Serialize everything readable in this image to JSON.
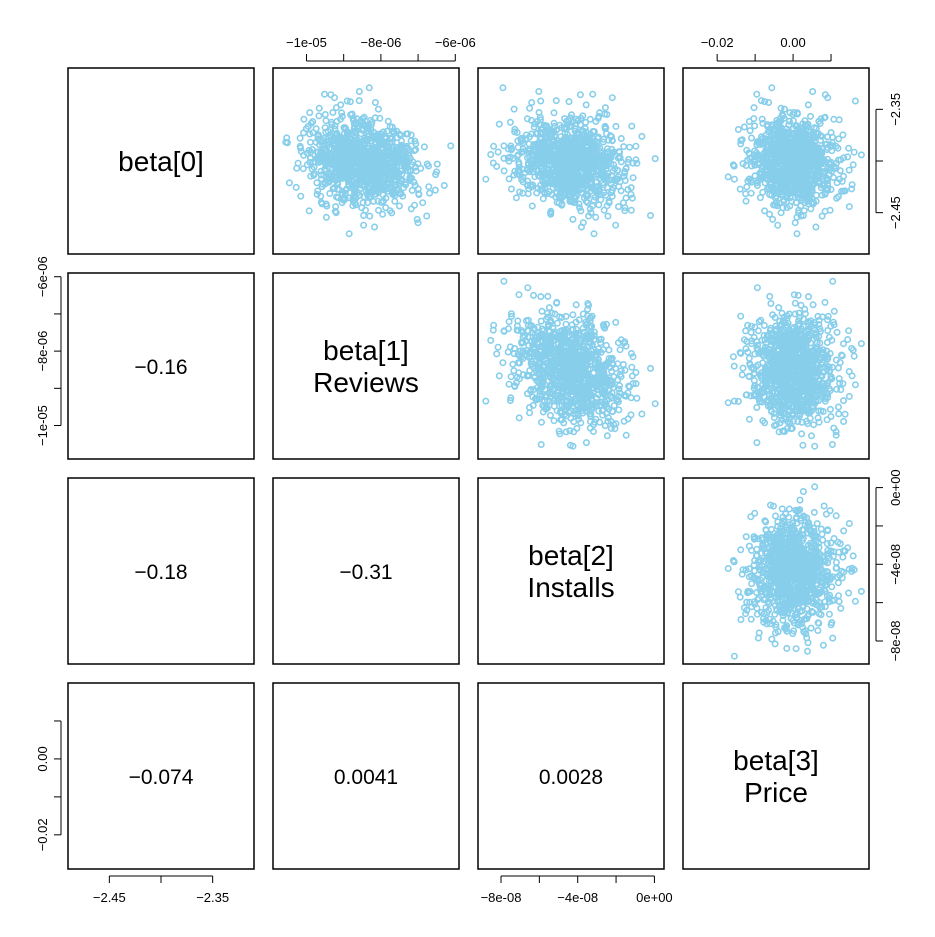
{
  "chart_data": {
    "type": "scatter",
    "point_color": "#87CEEB",
    "variables": [
      {
        "id": "beta0",
        "label_lines": [
          "beta[0]"
        ],
        "range": [
          -2.49,
          -2.31
        ],
        "ticks": [
          "-2.45",
          "-2.35"
        ]
      },
      {
        "id": "beta1",
        "label_lines": [
          "beta[1]",
          "Reviews"
        ],
        "range": [
          -1.09e-05,
          -5.9e-06
        ],
        "ticks": [
          "-1e-05",
          "-8e-06",
          "-6e-06"
        ]
      },
      {
        "id": "beta2",
        "label_lines": [
          "beta[2]",
          "Installs"
        ],
        "range": [
          -9.2e-08,
          5e-09
        ],
        "ticks": [
          "-8e-08",
          "-4e-08",
          "0e+00"
        ]
      },
      {
        "id": "beta3",
        "label_lines": [
          "beta[3]",
          "Price"
        ],
        "range": [
          -0.029,
          0.02
        ],
        "ticks": [
          "-0.02",
          "0.00"
        ]
      }
    ],
    "correlations": [
      {
        "row": 1,
        "col": 0,
        "text": "−0.16"
      },
      {
        "row": 2,
        "col": 0,
        "text": "−0.18"
      },
      {
        "row": 2,
        "col": 1,
        "text": "−0.31"
      },
      {
        "row": 3,
        "col": 0,
        "text": "−0.074"
      },
      {
        "row": 3,
        "col": 1,
        "text": "0.0041"
      },
      {
        "row": 3,
        "col": 2,
        "text": "0.0028"
      }
    ],
    "samples": {
      "n": 1000,
      "means": [
        -2.4,
        -8.5e-06,
        -4.4e-08,
        0.0
      ],
      "sds": [
        0.022,
        7.5e-07,
        1.45e-08,
        0.0058
      ],
      "corr": [
        [
          1,
          -0.16,
          -0.18,
          -0.074
        ],
        [
          -0.16,
          1,
          -0.31,
          0.0041
        ],
        [
          -0.18,
          -0.31,
          1,
          0.0028
        ],
        [
          -0.074,
          0.0041,
          0.0028,
          1
        ]
      ]
    }
  }
}
